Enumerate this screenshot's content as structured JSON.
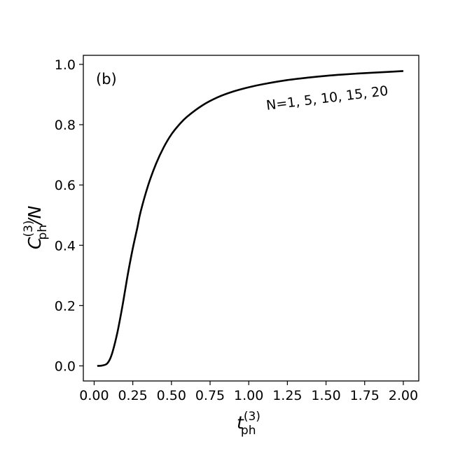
{
  "chart_data": {
    "type": "line",
    "panel_label": "(b)",
    "xlabel": {
      "base": "t",
      "sub": "ph",
      "sup": "(3)"
    },
    "ylabel": {
      "base": "C",
      "sub": "ph",
      "sup": "(3)",
      "suffix": "/N"
    },
    "xlim": [
      -0.07,
      2.1
    ],
    "ylim": [
      -0.05,
      1.03
    ],
    "xticks": [
      0.0,
      0.25,
      0.5,
      0.75,
      1.0,
      1.25,
      1.5,
      1.75,
      2.0
    ],
    "xtick_labels": [
      "0.00",
      "0.25",
      "0.50",
      "0.75",
      "1.00",
      "1.25",
      "1.50",
      "1.75",
      "2.00"
    ],
    "yticks": [
      0.0,
      0.2,
      0.4,
      0.6,
      0.8,
      1.0
    ],
    "ytick_labels": [
      "0.0",
      "0.2",
      "0.4",
      "0.6",
      "0.8",
      "1.0"
    ],
    "annotation": "N=1, 5, 10, 15, 20",
    "grid": false,
    "series": [
      {
        "color": "#000000",
        "x": [
          0.02,
          0.05,
          0.08,
          0.1,
          0.12,
          0.15,
          0.18,
          0.2,
          0.22,
          0.25,
          0.28,
          0.3,
          0.35,
          0.4,
          0.45,
          0.5,
          0.55,
          0.6,
          0.7,
          0.8,
          0.9,
          1.0,
          1.1,
          1.25,
          1.4,
          1.5,
          1.6,
          1.75,
          1.9,
          2.0
        ],
        "y": [
          0.0,
          0.001,
          0.006,
          0.02,
          0.048,
          0.11,
          0.19,
          0.25,
          0.31,
          0.39,
          0.46,
          0.51,
          0.6,
          0.67,
          0.725,
          0.768,
          0.8,
          0.826,
          0.864,
          0.891,
          0.91,
          0.924,
          0.935,
          0.948,
          0.957,
          0.962,
          0.966,
          0.971,
          0.975,
          0.978
        ]
      }
    ]
  }
}
